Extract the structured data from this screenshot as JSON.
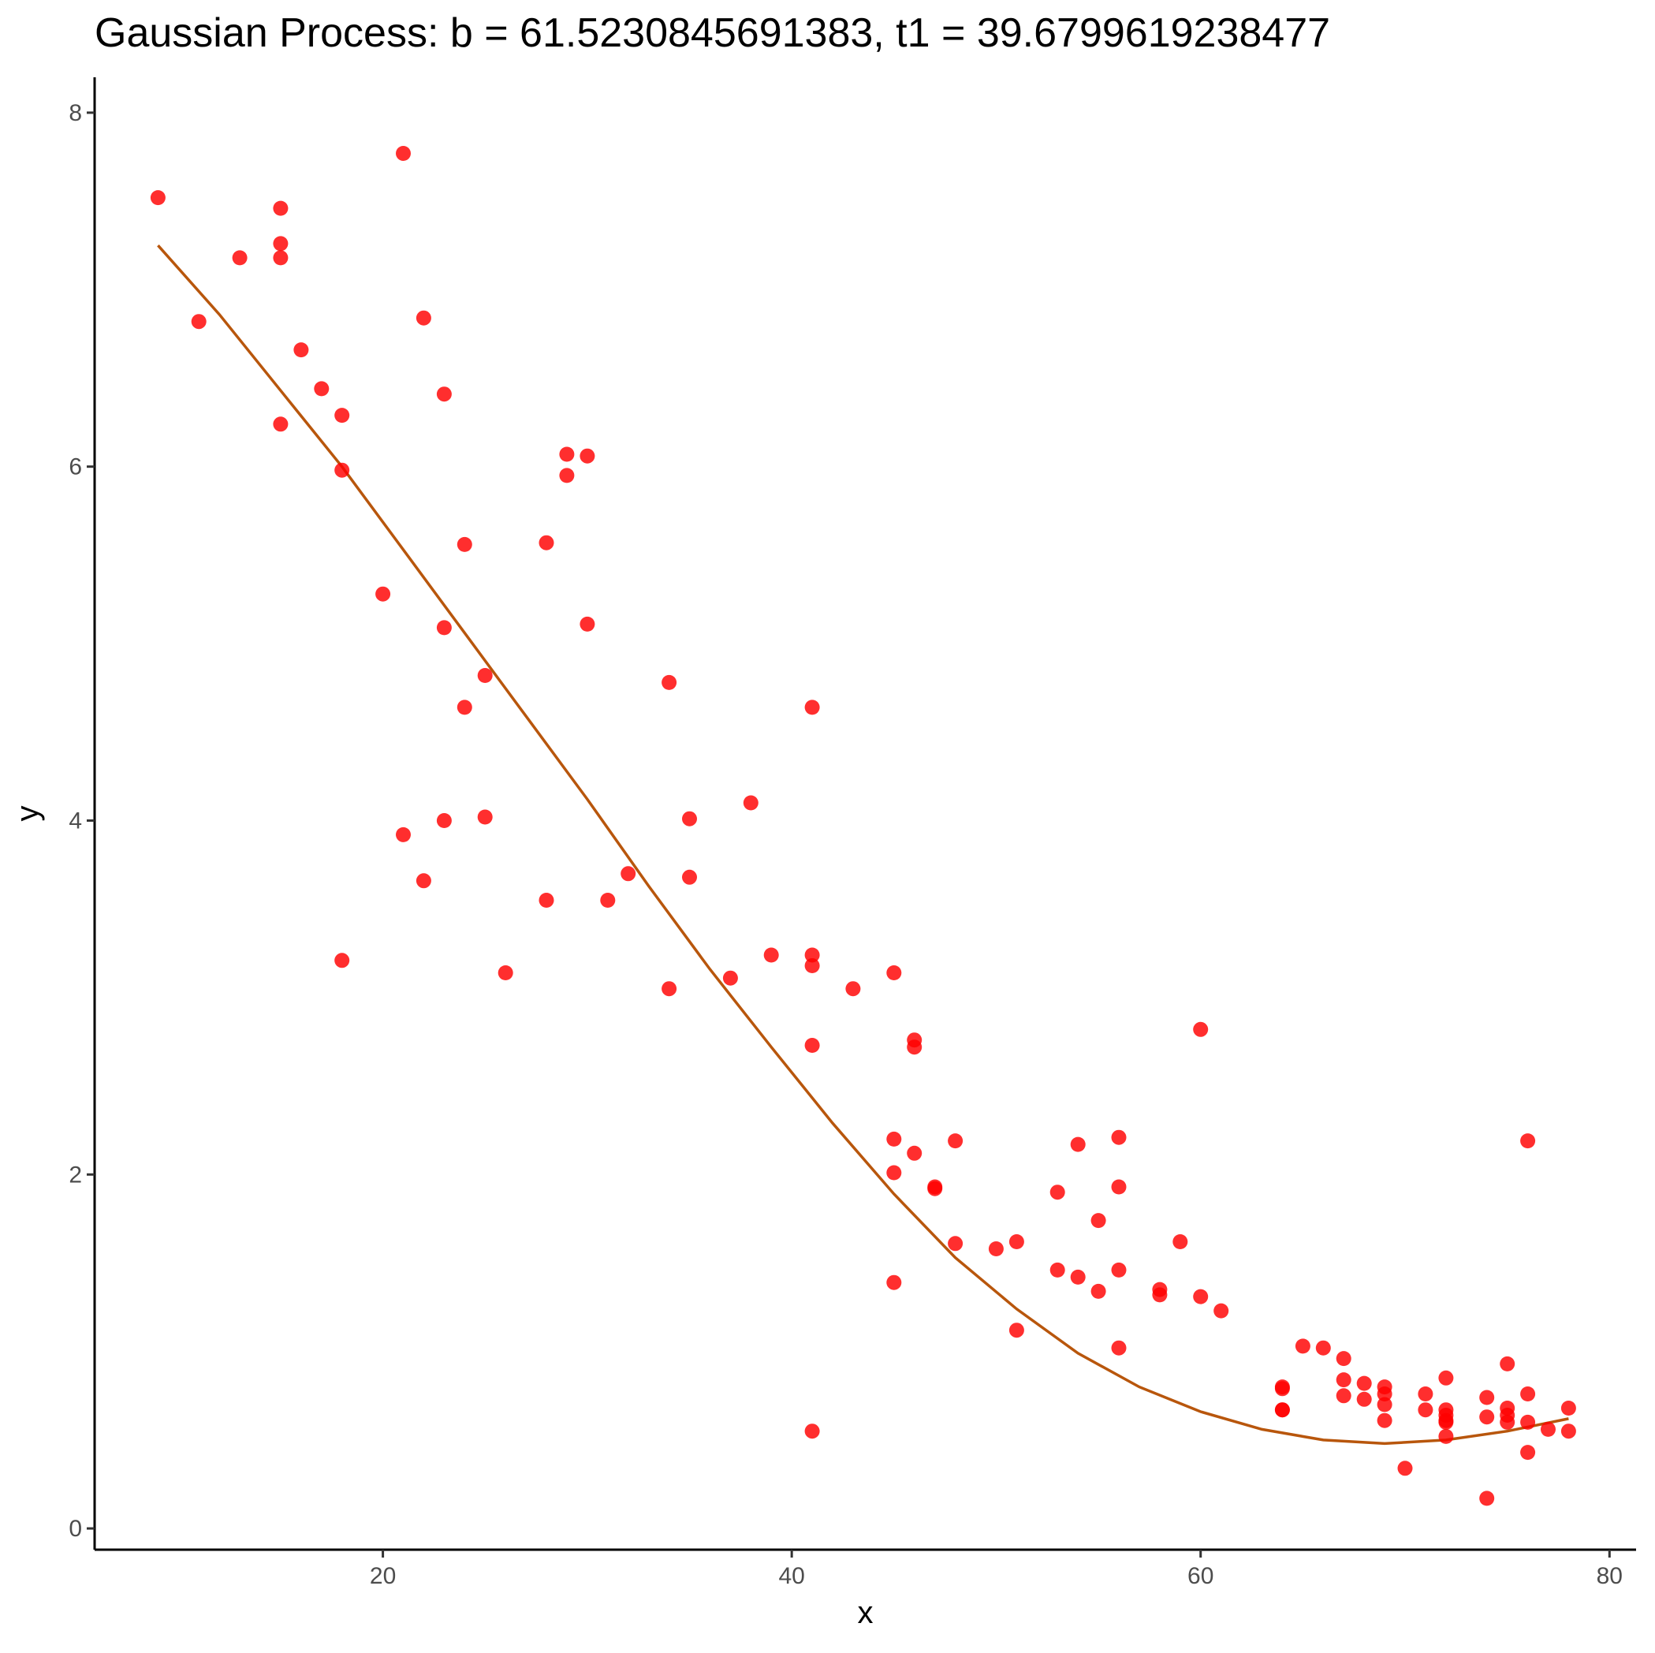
{
  "chart_data": {
    "type": "scatter",
    "title": "Gaussian Process: b = 61.5230845691383, t1 = 39.6799619238477",
    "xlabel": "x",
    "ylabel": "y",
    "xlim": [
      5.9,
      81.3
    ],
    "ylim": [
      -0.12,
      8.2
    ],
    "xticks": [
      20,
      40,
      60,
      80
    ],
    "yticks": [
      0,
      2,
      4,
      6,
      8
    ],
    "grid": false,
    "legend": "none",
    "colors": {
      "points": "#ff0000",
      "curve": "#b8560c",
      "axis": "#000000"
    },
    "series": [
      {
        "kind": "points",
        "x": [
          9,
          11,
          13,
          15,
          15,
          15,
          15,
          16,
          17,
          18,
          18,
          18,
          20,
          21,
          21,
          22,
          22,
          23,
          23,
          23,
          24,
          24,
          25,
          25,
          26,
          28,
          28,
          29,
          29,
          30,
          30,
          31,
          32,
          34,
          34,
          35,
          35,
          37,
          38,
          39,
          41,
          41,
          41,
          41,
          41,
          43,
          45,
          45,
          45,
          45,
          46,
          46,
          46,
          47,
          47,
          48,
          48,
          50,
          51,
          51,
          53,
          53,
          54,
          54,
          55,
          55,
          56,
          56,
          56,
          56,
          58,
          58,
          59,
          60,
          60,
          61,
          64,
          64,
          64,
          64,
          65,
          66,
          67,
          67,
          67,
          68,
          68,
          69,
          69,
          69,
          69,
          70,
          71,
          71,
          72,
          72,
          72,
          72,
          72,
          72,
          74,
          74,
          74,
          75,
          75,
          75,
          75,
          76,
          76,
          76,
          76,
          77,
          78,
          78
        ],
        "y": [
          7.52,
          6.82,
          7.18,
          7.46,
          7.26,
          7.18,
          6.24,
          6.66,
          6.44,
          6.29,
          5.98,
          3.21,
          5.28,
          7.77,
          3.92,
          6.84,
          3.66,
          6.41,
          5.09,
          4.0,
          5.56,
          4.64,
          4.82,
          4.02,
          3.14,
          5.57,
          3.55,
          6.07,
          5.95,
          6.06,
          5.11,
          3.55,
          3.7,
          4.78,
          3.05,
          4.01,
          3.68,
          3.11,
          4.1,
          3.24,
          4.64,
          3.24,
          3.18,
          2.73,
          0.55,
          3.05,
          3.14,
          2.2,
          2.01,
          1.39,
          2.76,
          2.72,
          2.12,
          1.93,
          1.92,
          2.19,
          1.61,
          1.58,
          1.62,
          1.12,
          1.9,
          1.46,
          1.42,
          2.17,
          1.74,
          1.34,
          2.21,
          1.93,
          1.46,
          1.02,
          1.35,
          1.32,
          1.62,
          2.82,
          1.31,
          1.23,
          0.8,
          0.79,
          0.67,
          0.67,
          1.03,
          1.02,
          0.96,
          0.84,
          0.75,
          0.82,
          0.73,
          0.8,
          0.76,
          0.7,
          0.61,
          0.34,
          0.76,
          0.67,
          0.85,
          0.67,
          0.64,
          0.61,
          0.6,
          0.52,
          0.17,
          0.74,
          0.63,
          0.93,
          0.68,
          0.64,
          0.6,
          0.76,
          0.6,
          0.43,
          2.19,
          0.56,
          0.68,
          0.55
        ]
      },
      {
        "kind": "curve",
        "x": [
          9,
          12,
          15,
          18,
          21,
          24,
          27,
          30,
          33,
          36,
          39,
          42,
          45,
          48,
          51,
          54,
          57,
          60,
          63,
          66,
          69,
          72,
          75,
          78
        ],
        "y": [
          7.25,
          6.86,
          6.43,
          6.0,
          5.53,
          5.06,
          4.59,
          4.12,
          3.63,
          3.16,
          2.72,
          2.29,
          1.89,
          1.53,
          1.24,
          0.99,
          0.8,
          0.66,
          0.56,
          0.5,
          0.48,
          0.5,
          0.55,
          0.62
        ]
      }
    ]
  }
}
